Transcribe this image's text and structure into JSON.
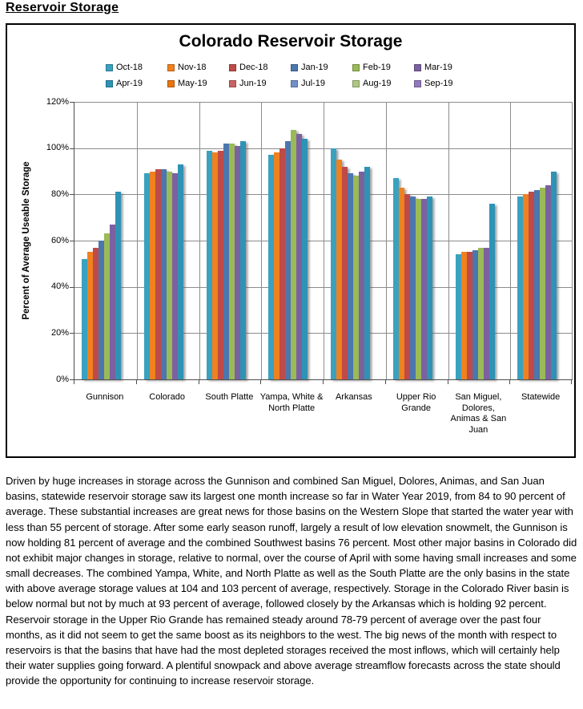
{
  "page": {
    "heading": "Reservoir Storage",
    "paragraph": "Driven by huge increases in storage across the Gunnison and combined San Miguel, Dolores, Animas, and San Juan basins, statewide reservoir storage saw its largest one month increase so far in Water Year 2019, from 84 to 90 percent of average. These substantial increases are great news for those basins on the Western Slope that started the water year with less than 55 percent of storage. After some early season runoff, largely a result of low elevation snowmelt, the Gunnison is now holding 81 percent of average and the combined Southwest basins 76 percent. Most other major basins in Colorado did not exhibit major changes in storage, relative to normal, over the course of April with some having small increases and some small decreases. The combined Yampa, White, and North Platte as well as the South Platte are the only basins in the state with above average storage values at 104 and 103 percent of average, respectively. Storage in the Colorado River basin is below normal but not by much at 93 percent of average, followed closely by the Arkansas which is holding 92 percent. Reservoir storage in the Upper Rio Grande has remained steady around 78-79 percent of average over the past four months, as it did not seem to get the same boost as its neighbors to the west. The big news of the month with respect to reservoirs is that the basins that have had the most depleted storages received the most inflows, which will certainly help their water supplies going forward. A plentiful snowpack and above average streamflow forecasts across the state should provide the opportunity for continuing to increase reservoir storage."
  },
  "chart_data": {
    "type": "bar",
    "title": "Colorado Reservoir Storage",
    "xlabel": "",
    "ylabel": "Percent of Average Useable Storage",
    "ylim": [
      0,
      120
    ],
    "y_tick_step": 20,
    "y_tick_labels": [
      "0%",
      "20%",
      "40%",
      "60%",
      "80%",
      "100%",
      "120%"
    ],
    "grid": true,
    "legend_position": "top",
    "categories": [
      "Gunnison",
      "Colorado",
      "South Platte",
      "Yampa, White & North Platte",
      "Arkansas",
      "Upper Rio Grande",
      "San Miguel, Dolores, Animas & San Juan",
      "Statewide"
    ],
    "series": [
      {
        "name": "Oct-18",
        "color": "#3AA1C0",
        "values": [
          52,
          89,
          99,
          97,
          100,
          87,
          54,
          79
        ]
      },
      {
        "name": "Nov-18",
        "color": "#F0811F",
        "values": [
          55,
          90,
          98,
          98,
          95,
          83,
          55,
          80
        ]
      },
      {
        "name": "Dec-18",
        "color": "#BE4B48",
        "values": [
          57,
          91,
          99,
          100,
          92,
          80,
          55,
          81
        ]
      },
      {
        "name": "Jan-19",
        "color": "#4B77AE",
        "values": [
          60,
          91,
          102,
          103,
          89,
          79,
          56,
          82
        ]
      },
      {
        "name": "Feb-19",
        "color": "#9ABA58",
        "values": [
          63,
          90,
          102,
          108,
          88,
          78,
          57,
          83
        ]
      },
      {
        "name": "Mar-19",
        "color": "#7C61A1",
        "values": [
          67,
          89,
          101,
          106,
          90,
          78,
          57,
          84
        ]
      },
      {
        "name": "Apr-19",
        "color": "#2E93B5",
        "values": [
          81,
          93,
          103,
          104,
          92,
          79,
          76,
          90
        ]
      },
      {
        "name": "May-19",
        "color": "#E9750D",
        "values": []
      },
      {
        "name": "Jun-19",
        "color": "#C96361",
        "values": []
      },
      {
        "name": "Jul-19",
        "color": "#7291C9",
        "values": []
      },
      {
        "name": "Aug-19",
        "color": "#AEC784",
        "values": []
      },
      {
        "name": "Sep-19",
        "color": "#9379BB",
        "values": []
      }
    ]
  },
  "layout_colors": {
    "gridline": "#8c8c8c",
    "axis": "#4d4d4d",
    "frame_border": "#000000"
  }
}
